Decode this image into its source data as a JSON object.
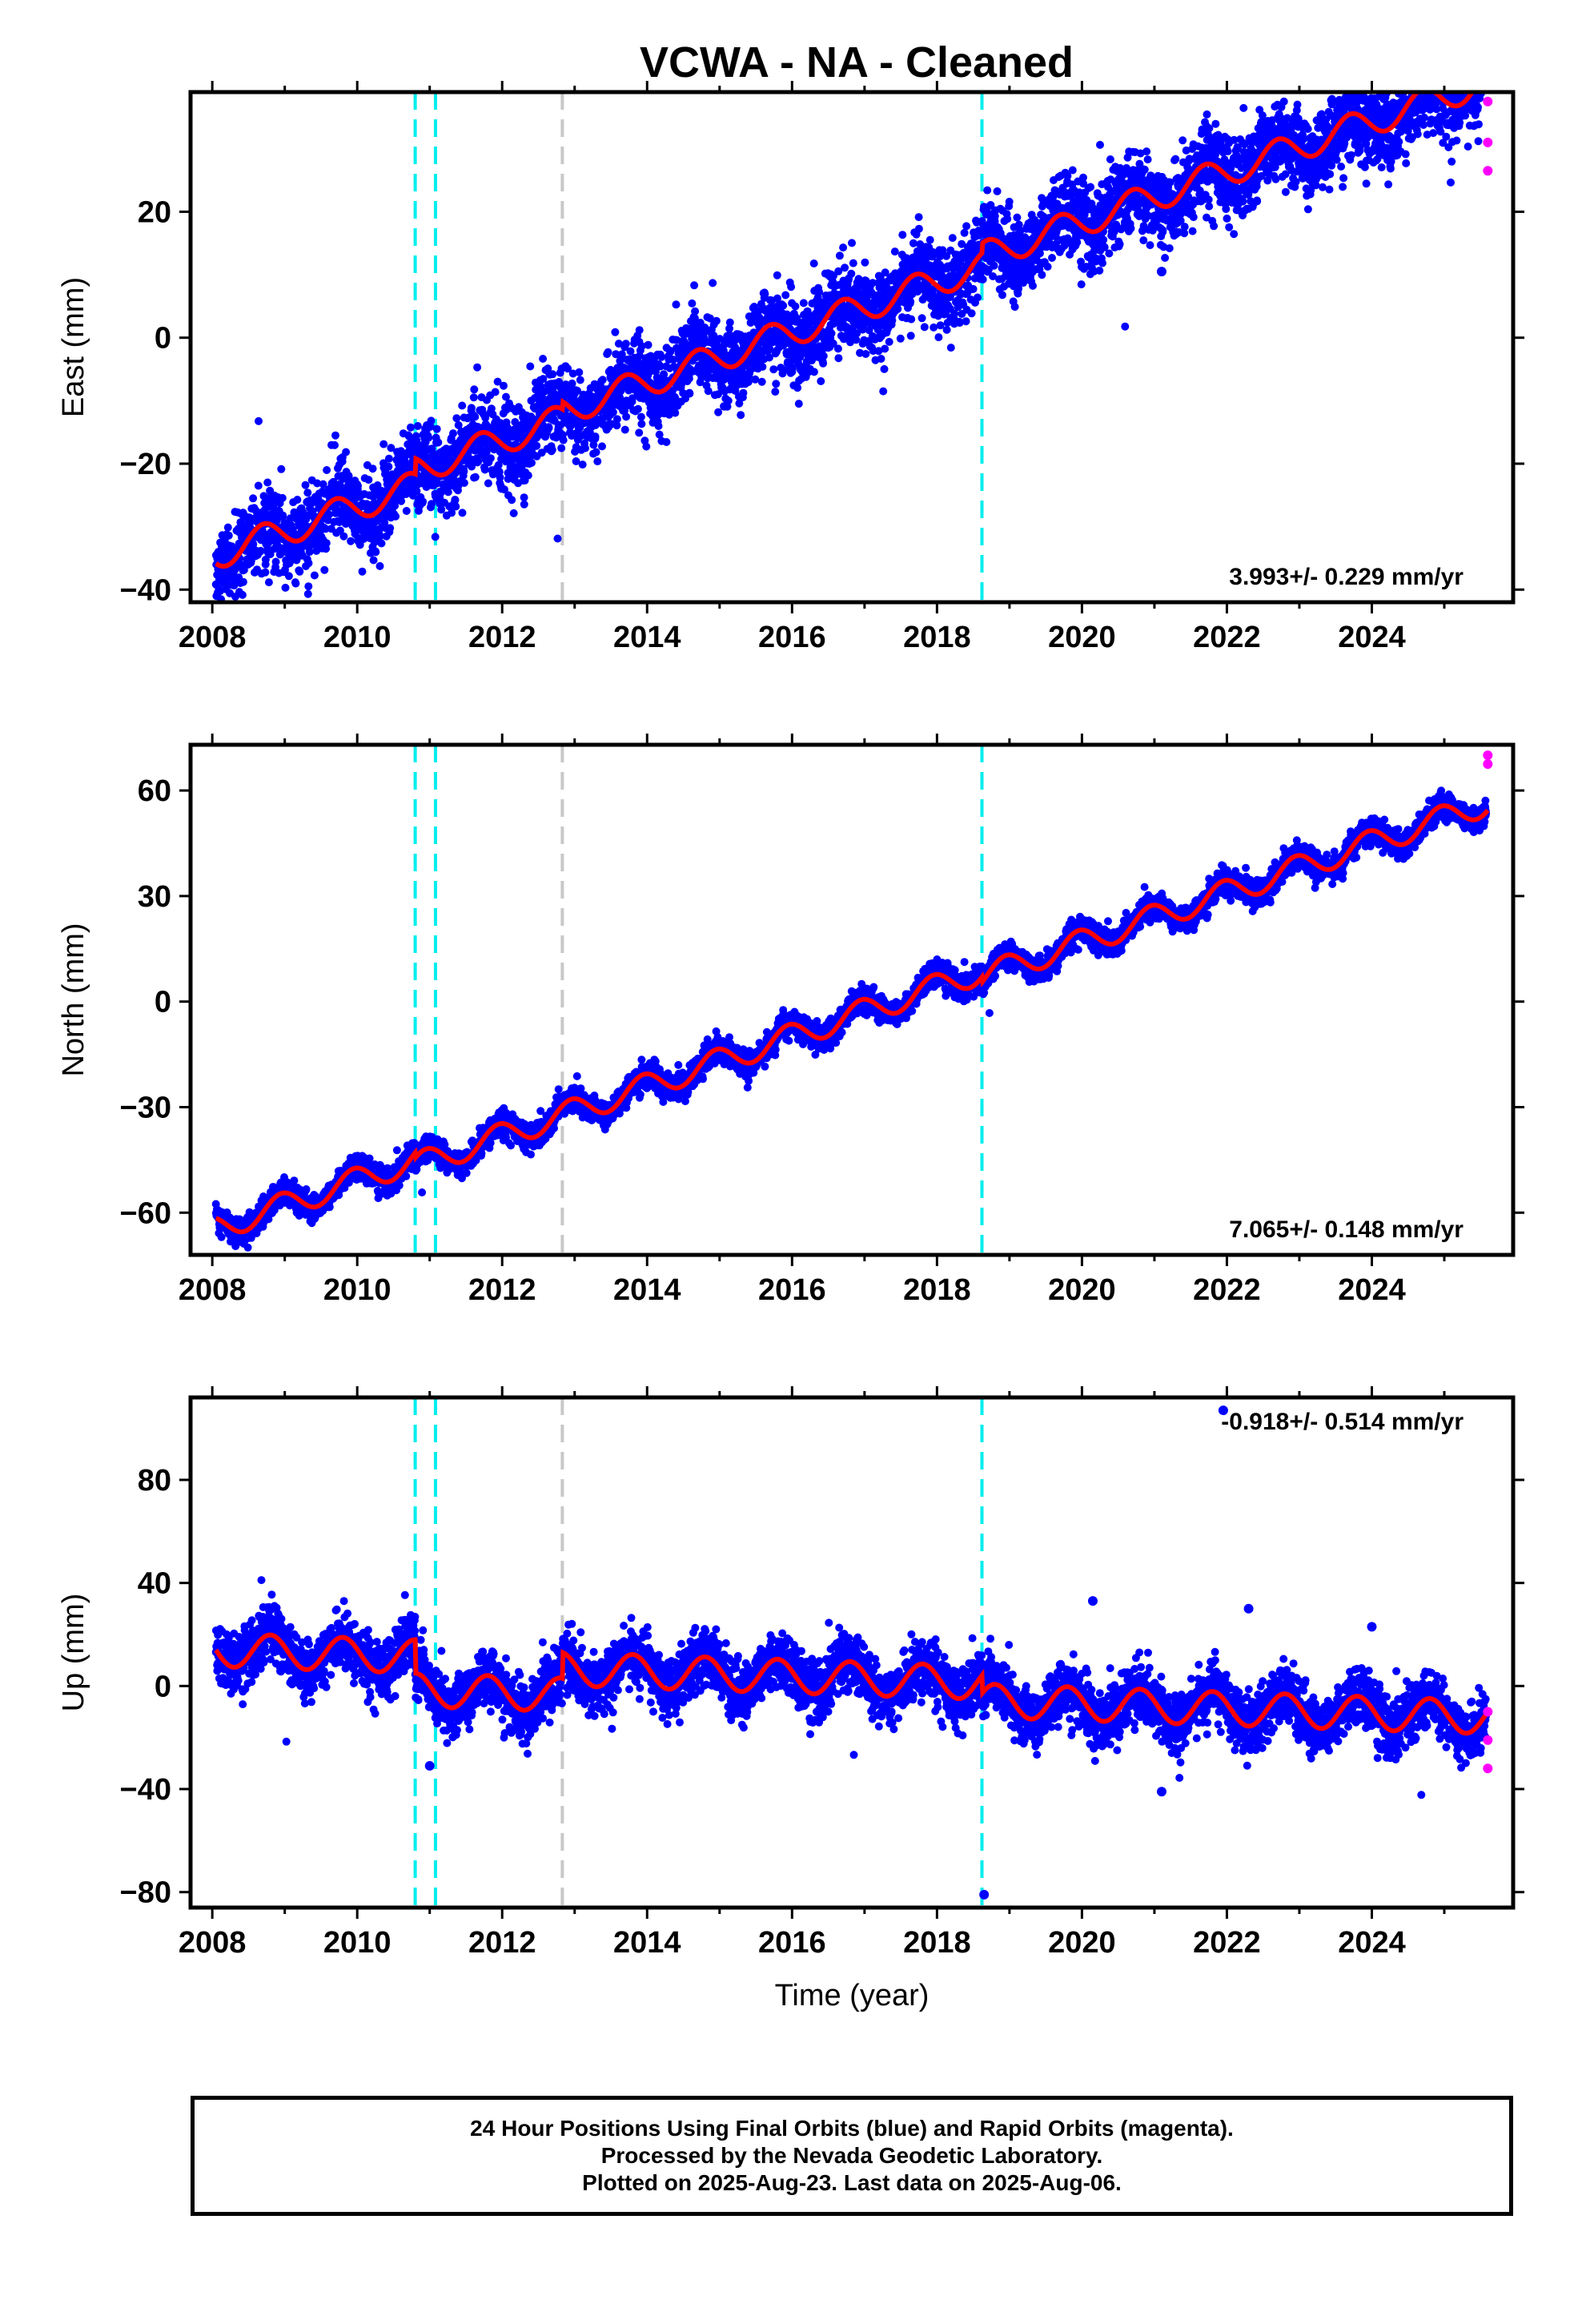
{
  "title": "VCWA  - NA - Cleaned",
  "colors": {
    "final": "#0000ff",
    "rapid": "#ff00ff",
    "model": "#ff0000",
    "equipment": "#00eeee",
    "other": "#c8c8c8"
  },
  "footer": {
    "line1": "24 Hour Positions Using Final Orbits (blue) and Rapid Orbits (magenta).",
    "line2": "Processed by the Nevada Geodetic Laboratory.",
    "line3": "Plotted on 2025-Aug-23. Last data on 2025-Aug-06."
  },
  "chart_data": [
    {
      "type": "scatter",
      "component": "east",
      "ylabel": "East (mm)",
      "xlabel": "",
      "xlim": [
        2007.7,
        2025.95
      ],
      "ylim": [
        -42,
        39
      ],
      "x_ticks": [
        2008,
        2010,
        2012,
        2014,
        2016,
        2018,
        2020,
        2022,
        2024
      ],
      "y_ticks": [
        -40,
        -20,
        0,
        20
      ],
      "rate": "3.993+/- 0.229 mm/yr",
      "rate_position": "bottom-right",
      "offsets": [
        {
          "year": 2010.8,
          "type": "equipment"
        },
        {
          "year": 2011.08,
          "type": "equipment"
        },
        {
          "year": 2012.83,
          "type": "other"
        },
        {
          "year": 2018.62,
          "type": "equipment"
        }
      ],
      "model": {
        "start_year": 2008.05,
        "end_year": 2025.6,
        "start_value": -34.5,
        "rate_mm_per_yr": 3.993,
        "annual_amp": 2.3,
        "phase": 0.55,
        "steps": [
          {
            "year": 2010.8,
            "value": 2.5
          },
          {
            "year": 2012.83,
            "value": 1.2
          },
          {
            "year": 2018.62,
            "value": 1.5
          }
        ]
      },
      "scatter": 3.2,
      "final_range": [
        2008.05,
        2025.58
      ],
      "rapid_points": [
        {
          "x": 2025.6,
          "y": 37.5
        },
        {
          "x": 2025.6,
          "y": 31
        },
        {
          "x": 2025.6,
          "y": 26.5
        }
      ],
      "outliers": [
        {
          "x": 2018.7,
          "y": 16.5
        },
        {
          "x": 2021.1,
          "y": 10.5
        },
        {
          "x": 2010.95,
          "y": -14.5
        }
      ]
    },
    {
      "type": "scatter",
      "component": "north",
      "ylabel": "North (mm)",
      "xlabel": "",
      "xlim": [
        2007.7,
        2025.95
      ],
      "ylim": [
        -72,
        73
      ],
      "x_ticks": [
        2008,
        2010,
        2012,
        2014,
        2016,
        2018,
        2020,
        2022,
        2024
      ],
      "y_ticks": [
        -60,
        -30,
        0,
        30,
        60
      ],
      "rate": "7.065+/- 0.148 mm/yr",
      "rate_position": "bottom-right",
      "offsets": [
        {
          "year": 2010.8,
          "type": "equipment"
        },
        {
          "year": 2011.08,
          "type": "equipment"
        },
        {
          "year": 2012.83,
          "type": "other"
        },
        {
          "year": 2018.62,
          "type": "equipment"
        }
      ],
      "model": {
        "start_year": 2008.05,
        "end_year": 2025.6,
        "start_value": -64.5,
        "rate_mm_per_yr": 7.065,
        "annual_amp": 3.6,
        "phase": 0.3,
        "steps": [
          {
            "year": 2010.8,
            "value": -1.5
          },
          {
            "year": 2018.62,
            "value": -1.5
          }
        ]
      },
      "scatter": 1.8,
      "final_range": [
        2008.05,
        2025.58
      ],
      "rapid_points": [
        {
          "x": 2025.6,
          "y": 70
        },
        {
          "x": 2025.6,
          "y": 67.5
        }
      ],
      "outliers": []
    },
    {
      "type": "scatter",
      "component": "up",
      "ylabel": "Up (mm)",
      "xlabel": "Time (year)",
      "xlim": [
        2007.7,
        2025.95
      ],
      "ylim": [
        -86,
        112
      ],
      "x_ticks": [
        2008,
        2010,
        2012,
        2014,
        2016,
        2018,
        2020,
        2022,
        2024
      ],
      "y_ticks": [
        -80,
        -40,
        0,
        40,
        80
      ],
      "rate": "-0.918+/- 0.514 mm/yr",
      "rate_position": "top-right",
      "offsets": [
        {
          "year": 2010.8,
          "type": "equipment"
        },
        {
          "year": 2011.08,
          "type": "equipment"
        },
        {
          "year": 2012.83,
          "type": "other"
        },
        {
          "year": 2018.62,
          "type": "equipment"
        }
      ],
      "model": {
        "start_year": 2008.05,
        "end_year": 2025.6,
        "start_value": 14,
        "rate_mm_per_yr": -0.918,
        "annual_amp": 6.5,
        "phase": 0.45,
        "steps": [
          {
            "year": 2010.8,
            "value": -13
          },
          {
            "year": 2012.83,
            "value": 10
          },
          {
            "year": 2018.62,
            "value": -7
          }
        ]
      },
      "scatter": 5.5,
      "final_range": [
        2008.05,
        2025.58
      ],
      "rapid_points": [
        {
          "x": 2025.6,
          "y": -10
        },
        {
          "x": 2025.6,
          "y": -21
        },
        {
          "x": 2025.6,
          "y": -32
        }
      ],
      "outliers": [
        {
          "x": 2018.65,
          "y": -81
        },
        {
          "x": 2021.1,
          "y": -41
        },
        {
          "x": 2020.15,
          "y": 33
        },
        {
          "x": 2022.3,
          "y": 30
        },
        {
          "x": 2024.0,
          "y": 23
        },
        {
          "x": 2021.95,
          "y": 107
        },
        {
          "x": 2011.0,
          "y": -31
        }
      ]
    }
  ]
}
